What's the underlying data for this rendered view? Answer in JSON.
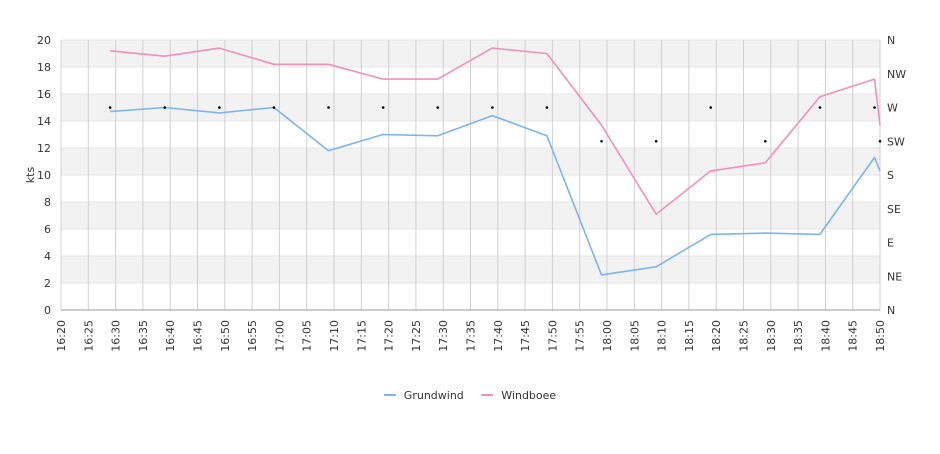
{
  "chart_data": {
    "type": "line",
    "title": "",
    "ylabel": "kts",
    "xlabel": "",
    "ylim": [
      0,
      20
    ],
    "yticks": [
      "0",
      "2",
      "4",
      "6",
      "8",
      "10",
      "12",
      "14",
      "16",
      "18",
      "20"
    ],
    "y2_ticks": [
      "N",
      "NE",
      "E",
      "SE",
      "S",
      "SW",
      "W",
      "NW",
      "N"
    ],
    "x_ticks": [
      "16:20",
      "16:25",
      "16:30",
      "16:35",
      "16:40",
      "16:45",
      "16:50",
      "16:55",
      "17:00",
      "17:05",
      "17:10",
      "17:15",
      "17:20",
      "17:25",
      "17:30",
      "17:35",
      "17:40",
      "17:45",
      "17:50",
      "17:55",
      "18:00",
      "18:05",
      "18:10",
      "18:15",
      "18:20",
      "18:25",
      "18:30",
      "18:35",
      "18:40",
      "18:45",
      "18:50"
    ],
    "grid": true,
    "legend_position": "bottom",
    "series": [
      {
        "name": "Grundwind",
        "color": "#7cb5ec",
        "points": [
          [
            "16:29",
            14.7
          ],
          [
            "16:39",
            15.0
          ],
          [
            "16:49",
            14.6
          ],
          [
            "16:59",
            15.0
          ],
          [
            "17:09",
            11.8
          ],
          [
            "17:19",
            13.0
          ],
          [
            "17:29",
            12.9
          ],
          [
            "17:39",
            14.4
          ],
          [
            "17:49",
            12.9
          ],
          [
            "17:59",
            2.6
          ],
          [
            "18:09",
            3.2
          ],
          [
            "18:19",
            5.6
          ],
          [
            "18:29",
            5.7
          ],
          [
            "18:39",
            5.6
          ],
          [
            "18:49",
            11.3
          ],
          [
            "18:50",
            10.3
          ]
        ]
      },
      {
        "name": "Windboee",
        "color": "#f18fbd",
        "points": [
          [
            "16:29",
            19.2
          ],
          [
            "16:39",
            18.8
          ],
          [
            "16:49",
            19.4
          ],
          [
            "16:59",
            18.2
          ],
          [
            "17:09",
            18.2
          ],
          [
            "17:19",
            17.1
          ],
          [
            "17:29",
            17.1
          ],
          [
            "17:39",
            19.4
          ],
          [
            "17:49",
            19.0
          ],
          [
            "17:59",
            13.7
          ],
          [
            "18:09",
            7.1
          ],
          [
            "18:19",
            10.3
          ],
          [
            "18:29",
            10.9
          ],
          [
            "18:39",
            15.8
          ],
          [
            "18:49",
            17.1
          ],
          [
            "18:50",
            13.7
          ]
        ]
      }
    ],
    "direction_markers": [
      [
        "16:29",
        "W"
      ],
      [
        "16:39",
        "W"
      ],
      [
        "16:49",
        "W"
      ],
      [
        "16:59",
        "W"
      ],
      [
        "17:09",
        "W"
      ],
      [
        "17:19",
        "W"
      ],
      [
        "17:29",
        "W"
      ],
      [
        "17:39",
        "W"
      ],
      [
        "17:49",
        "W"
      ],
      [
        "17:59",
        "SW"
      ],
      [
        "18:09",
        "SW"
      ],
      [
        "18:19",
        "W"
      ],
      [
        "18:29",
        "SW"
      ],
      [
        "18:39",
        "W"
      ],
      [
        "18:49",
        "W"
      ],
      [
        "18:50",
        "SW"
      ]
    ]
  }
}
